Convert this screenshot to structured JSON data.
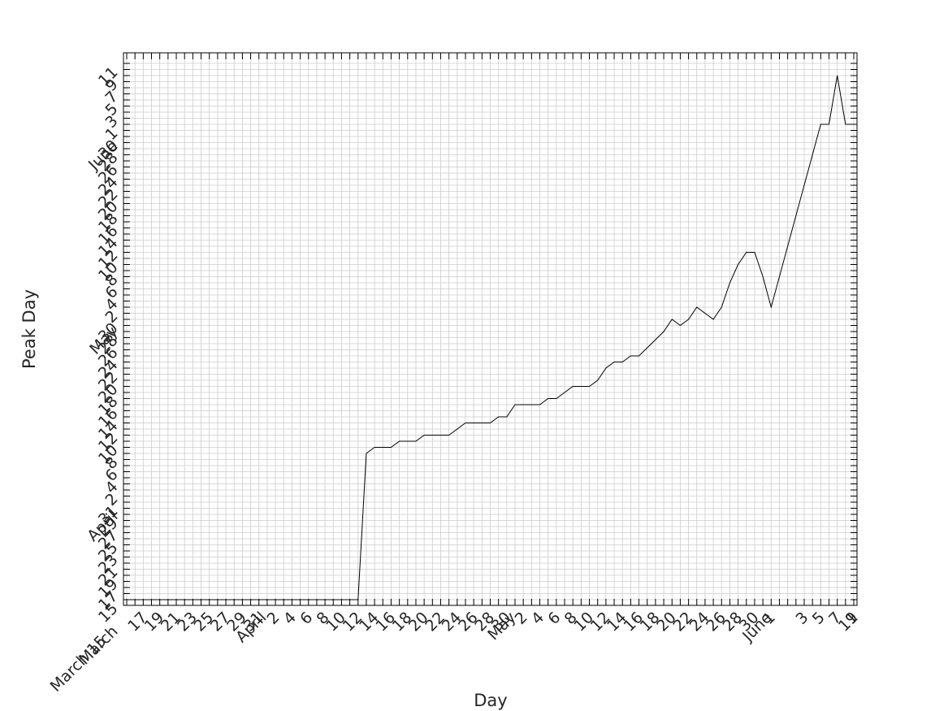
{
  "chart_data": {
    "type": "line",
    "title": "",
    "xlabel": "Day",
    "ylabel": "Peak Day",
    "grid": true,
    "line_color": "#000000",
    "grid_color": "#cccccc",
    "x_range": [
      "2020-03-15",
      "2020-06-11"
    ],
    "y_range": [
      "2020-03-15",
      "2020-06-11"
    ],
    "x_tick_labels": [
      "March 15",
      "17",
      "19",
      "21",
      "23",
      "25",
      "27",
      "29",
      "31",
      "April",
      "2",
      "4",
      "6",
      "8",
      "10",
      "12",
      "14",
      "16",
      "18",
      "20",
      "22",
      "24",
      "26",
      "28",
      "30",
      "May",
      "2",
      "4",
      "6",
      "8",
      "10",
      "12",
      "14",
      "16",
      "18",
      "20",
      "22",
      "24",
      "26",
      "28",
      "30",
      "June",
      "1",
      "3",
      "5",
      "7",
      "9",
      "11"
    ],
    "y_tick_labels": [
      "March",
      "15",
      "17",
      "19",
      "21",
      "23",
      "25",
      "27",
      "29",
      "31",
      "April",
      "2",
      "4",
      "6",
      "8",
      "10",
      "12",
      "14",
      "16",
      "18",
      "20",
      "22",
      "24",
      "26",
      "28",
      "30",
      "May",
      "2",
      "4",
      "6",
      "8",
      "10",
      "12",
      "14",
      "16",
      "18",
      "20",
      "22",
      "24",
      "26",
      "28",
      "30",
      "June",
      "1",
      "3",
      "5",
      "7",
      "9",
      "11"
    ],
    "series": [
      {
        "x": [
          "2020-03-15",
          "2020-04-12",
          "2020-04-13",
          "2020-04-14",
          "2020-04-16",
          "2020-04-17",
          "2020-04-19",
          "2020-04-20",
          "2020-04-23",
          "2020-04-25",
          "2020-04-28",
          "2020-04-29",
          "2020-04-30",
          "2020-05-01",
          "2020-05-04",
          "2020-05-05",
          "2020-05-06",
          "2020-05-08",
          "2020-05-10",
          "2020-05-11",
          "2020-05-12",
          "2020-05-13",
          "2020-05-14",
          "2020-05-15",
          "2020-05-16",
          "2020-05-19",
          "2020-05-20",
          "2020-05-21",
          "2020-05-22",
          "2020-05-23",
          "2020-05-25",
          "2020-05-26",
          "2020-05-27",
          "2020-05-28",
          "2020-05-29",
          "2020-05-30",
          "2020-05-31",
          "2020-06-01",
          "2020-06-07",
          "2020-06-08",
          "2020-06-09",
          "2020-06-10",
          "2020-06-11"
        ],
        "y": [
          "2020-03-15",
          "2020-03-15",
          "2020-04-08",
          "2020-04-09",
          "2020-04-09",
          "2020-04-10",
          "2020-04-10",
          "2020-04-11",
          "2020-04-11",
          "2020-04-13",
          "2020-04-13",
          "2020-04-14",
          "2020-04-14",
          "2020-04-16",
          "2020-04-16",
          "2020-04-17",
          "2020-04-17",
          "2020-04-19",
          "2020-04-19",
          "2020-04-20",
          "2020-04-22",
          "2020-04-23",
          "2020-04-23",
          "2020-04-24",
          "2020-04-24",
          "2020-04-28",
          "2020-04-30",
          "2020-04-29",
          "2020-04-30",
          "2020-05-02",
          "2020-04-30",
          "2020-05-02",
          "2020-05-06",
          "2020-05-09",
          "2020-05-11",
          "2020-05-11",
          "2020-05-07",
          "2020-05-02",
          "2020-06-01",
          "2020-06-01",
          "2020-06-09",
          "2020-06-01",
          "2020-06-01"
        ]
      }
    ]
  }
}
